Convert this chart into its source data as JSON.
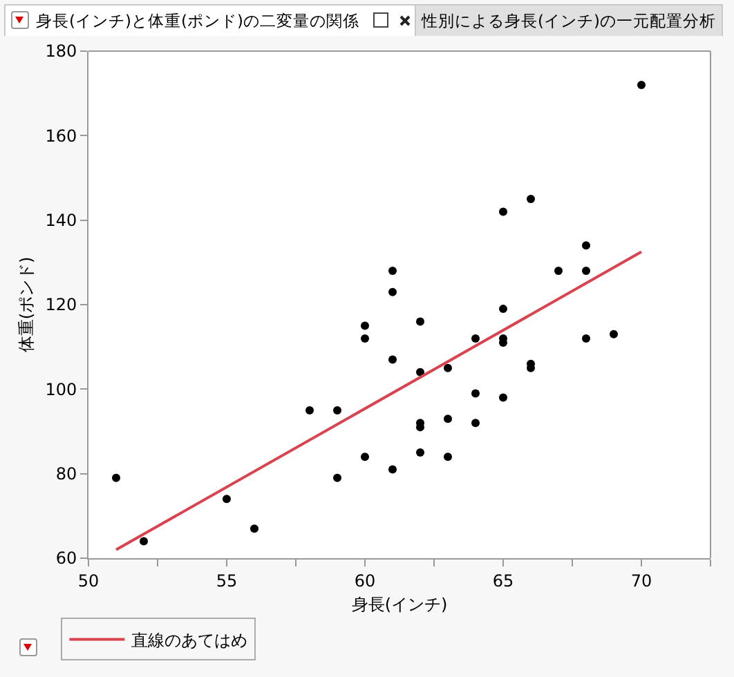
{
  "chart_data": {
    "type": "scatter",
    "title": "身長(インチ)と体重(ポンド)の二変量の関係",
    "annotations": [
      "性別による身長(インチ)の一元配置分析"
    ],
    "xlabel": "身長(インチ)",
    "ylabel": "体重(ポンド)",
    "xlim": [
      50,
      72.5
    ],
    "xticks": [
      50,
      {
        "value": 52.5,
        "label": null
      },
      55,
      {
        "value": 57.5,
        "label": null
      },
      60,
      {
        "value": 62.5,
        "label": null
      },
      65,
      {
        "value": 67.5,
        "label": null
      },
      70,
      {
        "value": 72.5,
        "label": null
      }
    ],
    "ylim": [
      60,
      180
    ],
    "yticks": [
      60,
      80,
      100,
      120,
      140,
      160,
      180
    ],
    "grid": false,
    "legend": "bottom left",
    "series": [
      {
        "marker": "circle",
        "color": "#000000",
        "x": [
          51,
          52,
          55,
          56,
          58,
          59,
          59,
          60,
          60,
          60,
          61,
          61,
          61,
          61,
          62,
          62,
          62,
          62,
          62,
          63,
          63,
          63,
          64,
          64,
          64,
          65,
          65,
          65,
          65,
          65,
          66,
          66,
          66,
          67,
          68,
          68,
          68,
          69,
          70
        ],
        "values": [
          79,
          64,
          74,
          67,
          95,
          95,
          79,
          115,
          112,
          84,
          128,
          123,
          107,
          81,
          116,
          104,
          92,
          91,
          85,
          105,
          93,
          84,
          112,
          99,
          92,
          142,
          119,
          112,
          111,
          98,
          145,
          106,
          105,
          128,
          134,
          128,
          112,
          113,
          172
        ]
      },
      {
        "type": "line",
        "name": "直線のあてはめ",
        "color": "#d9434f",
        "line_style": "solid",
        "x": [
          51,
          70
        ],
        "values": [
          62,
          132.5
        ]
      }
    ]
  }
}
